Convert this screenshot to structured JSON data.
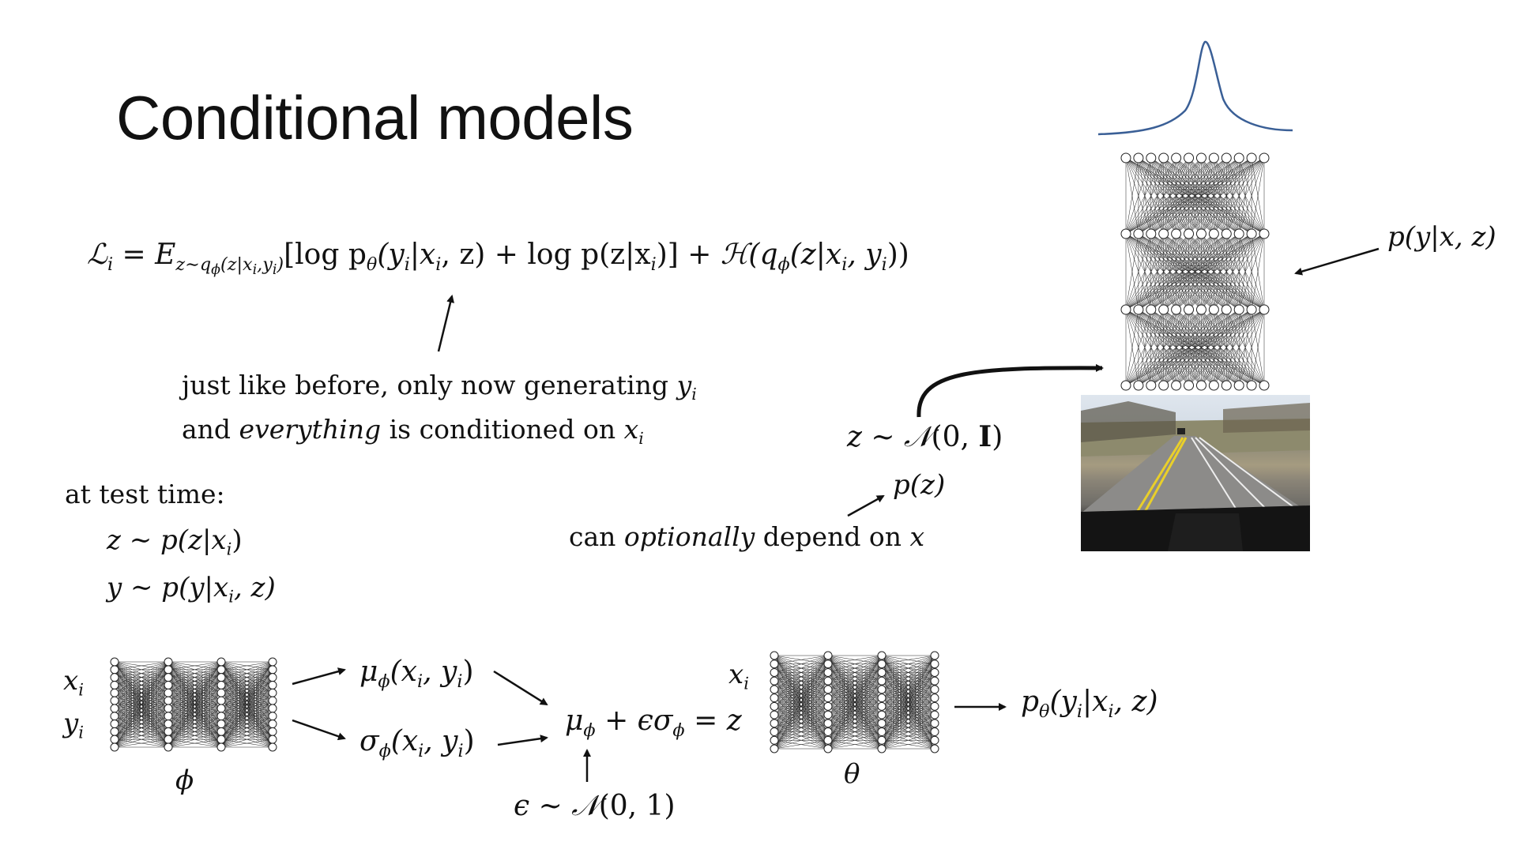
{
  "slide": {
    "title": "Conditional models"
  },
  "objective": {
    "lhs": "ℒ",
    "lhs_sub": "i",
    "expect": "E",
    "expect_sub": "z∼q",
    "expect_sub_phi": "ϕ",
    "expect_sub_args": "(z|x",
    "expect_sub_i": "i",
    "expect_sub_y": ",y",
    "expect_sub_yi": "i",
    "expect_sub_close": ")",
    "bracket_term": "[log p",
    "theta": "θ",
    "term1_args": "(y",
    "term1_i": "i",
    "term1_mid": "|x",
    "term1_i2": "i",
    "term1_end": ", z) + log p(z|x",
    "term1_i3": "i",
    "term1_close": ")] + ",
    "entropy": "ℋ",
    "entropy_args": "(q",
    "entropy_phi": "ϕ",
    "entropy_mid": "(z|x",
    "entropy_i": "i",
    "entropy_y": ", y",
    "entropy_yi": "i",
    "entropy_close": "))"
  },
  "annotation": {
    "line1": "just like before, only now generating ",
    "line1_var": "y",
    "line1_sub": "i",
    "line2_a": "and ",
    "line2_em": "everything",
    "line2_b": " is conditioned on ",
    "line2_var": "x",
    "line2_sub": "i"
  },
  "test_time": {
    "heading": "at test time:",
    "step1": "z ∼ p(z|x",
    "step1_sub": "i",
    "step1_close": ")",
    "step2": "y ∼ p(y|x",
    "step2_sub": "i",
    "step2_close": ", z)"
  },
  "prior": {
    "z_dist": "z ∼ ",
    "normal": "𝒩",
    "args_open": "(0, ",
    "identity": "I",
    "args_close": ")",
    "pz": "p(z)",
    "optional_a": "can ",
    "optional_em": "optionally",
    "optional_b": " depend on ",
    "optional_var": "x"
  },
  "decoder_label": {
    "text": "p(y|x, z)"
  },
  "encoder": {
    "in_x": "x",
    "in_x_sub": "i",
    "in_y": "y",
    "in_y_sub": "i",
    "param": "ϕ",
    "mu": "μ",
    "mu_sub": "ϕ",
    "mu_args": "(x",
    "mu_i": "i",
    "mu_mid": ", y",
    "mu_yi": "i",
    "mu_close": ")",
    "sigma": "σ",
    "sigma_sub": "ϕ",
    "sigma_args": "(x",
    "sigma_i": "i",
    "sigma_mid": ", y",
    "sigma_yi": "i",
    "sigma_close": ")"
  },
  "reparam": {
    "mu": "μ",
    "mu_sub": "ϕ",
    "plus": " + ϵσ",
    "sigma_sub": "ϕ",
    "eq": " = z",
    "eps": "ϵ ∼ ",
    "normal": "𝒩",
    "eps_args": "(0, 1)"
  },
  "decoder": {
    "in_x": "x",
    "in_x_sub": "i",
    "param": "θ",
    "out_p": "p",
    "out_theta": "θ",
    "out_args": "(y",
    "out_i": "i",
    "out_mid": "|x",
    "out_i2": "i",
    "out_close": ", z)"
  }
}
